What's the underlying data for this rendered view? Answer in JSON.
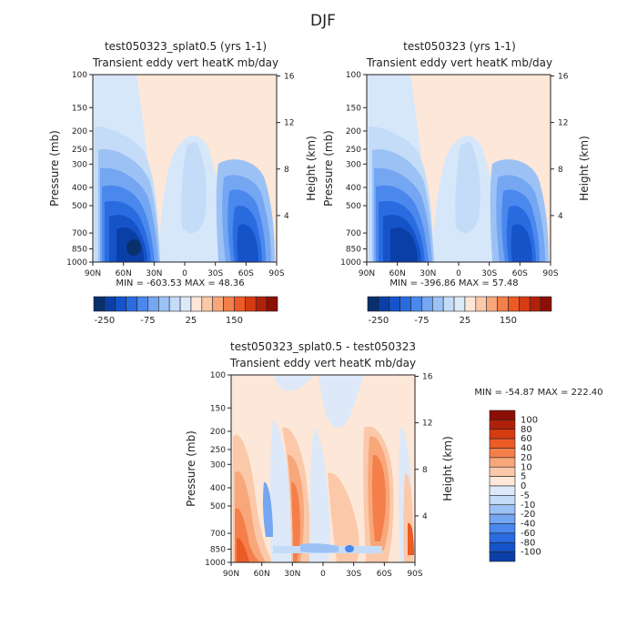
{
  "page_title": "DJF",
  "colors": {
    "neg": [
      "#08306b",
      "#0a3fa8",
      "#1553c8",
      "#2a6be0",
      "#4a88ee",
      "#74a6f2",
      "#9cc2f5",
      "#c4dcf8",
      "#dde9f8"
    ],
    "pos": [
      "#fde7d8",
      "#fbc9a9",
      "#f8a77b",
      "#f47f4b",
      "#ec5a26",
      "#d63b12",
      "#b0210b",
      "#8b0f06"
    ]
  },
  "panels": [
    {
      "id": "left",
      "title": "test050323_splat0.5 (yrs 1-1)",
      "subtitle": "Transient eddy vert heatK mb/day",
      "ylabel": "Pressure (mb)",
      "y2label": "Height (km)",
      "stats": "MIN = -603.53   MAX = 48.36"
    },
    {
      "id": "right",
      "title": "test050323 (yrs 1-1)",
      "subtitle": "Transient eddy vert heatK mb/day",
      "ylabel": "Pressure (mb)",
      "y2label": "Height (km)",
      "stats": "MIN = -396.86   MAX = 57.48"
    },
    {
      "id": "diff",
      "title": "test050323_splat0.5 - test050323",
      "subtitle": "Transient eddy vert heatK mb/day",
      "ylabel": "Pressure (mb)",
      "y2label": "Height (km)",
      "stats": "MIN = -54.87   MAX = 222.40"
    }
  ],
  "chart_data": {
    "type": "heatmap",
    "x_ticks": [
      "90N",
      "60N",
      "30N",
      "0",
      "30S",
      "60S",
      "90S"
    ],
    "x_values": [
      90,
      60,
      30,
      0,
      -30,
      -60,
      -90
    ],
    "pressure_ticks": [
      "100",
      "150",
      "200",
      "250",
      "300",
      "400",
      "500",
      "700",
      "850",
      "1000"
    ],
    "pressure_values": [
      100,
      150,
      200,
      250,
      300,
      400,
      500,
      700,
      850,
      1000
    ],
    "height_ticks": [
      "4",
      "8",
      "12",
      "16"
    ],
    "height_values": [
      4,
      8,
      12,
      16
    ],
    "colorbar_top": {
      "labels": [
        "-250",
        "-75",
        "25",
        "150"
      ],
      "levels": [
        -400,
        -250,
        -200,
        -150,
        -100,
        -75,
        -50,
        -25,
        -10,
        0,
        10,
        25,
        50,
        75,
        100,
        150,
        200
      ]
    },
    "colorbar_diff": {
      "labels": [
        "100",
        "80",
        "60",
        "40",
        "20",
        "10",
        "5",
        "0",
        "-5",
        "-10",
        "-20",
        "-40",
        "-60",
        "-80",
        "-100"
      ]
    }
  }
}
